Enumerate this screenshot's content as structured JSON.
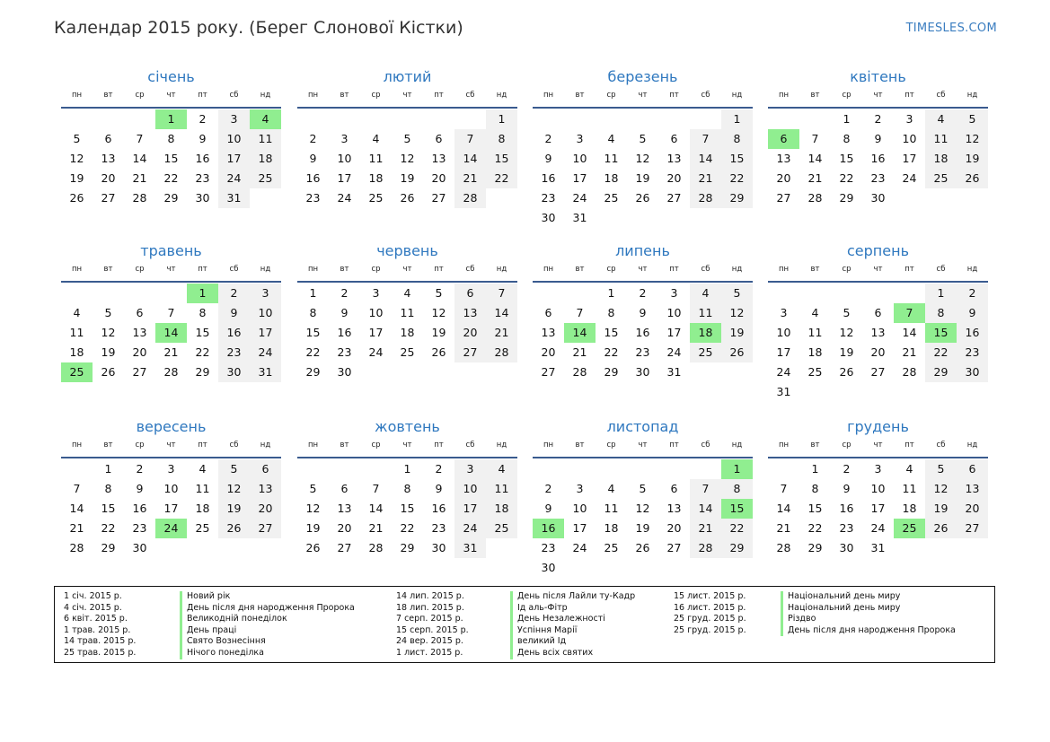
{
  "header": {
    "title": "Календар 2015 року. (Берег Слонової Кістки)",
    "brand": "TIMESLES.COM"
  },
  "weekdays": [
    "пн",
    "вт",
    "ср",
    "чт",
    "пт",
    "сб",
    "нд"
  ],
  "colors": {
    "accent": "#2f78bf",
    "holiday": "#90ee90",
    "weekend": "#f1f1f1",
    "rule": "#3a5b8f"
  },
  "months": [
    {
      "name": "січень",
      "offset": 3,
      "days": 31,
      "holidays": [
        1,
        4
      ]
    },
    {
      "name": "лютий",
      "offset": 6,
      "days": 28,
      "holidays": []
    },
    {
      "name": "березень",
      "offset": 6,
      "days": 31,
      "holidays": []
    },
    {
      "name": "квітень",
      "offset": 2,
      "days": 30,
      "holidays": [
        6
      ]
    },
    {
      "name": "травень",
      "offset": 4,
      "days": 31,
      "holidays": [
        1,
        14,
        25
      ]
    },
    {
      "name": "червень",
      "offset": 0,
      "days": 30,
      "holidays": []
    },
    {
      "name": "липень",
      "offset": 2,
      "days": 31,
      "holidays": [
        14,
        18
      ]
    },
    {
      "name": "серпень",
      "offset": 5,
      "days": 31,
      "holidays": [
        7,
        15
      ]
    },
    {
      "name": "вересень",
      "offset": 1,
      "days": 30,
      "holidays": [
        24
      ]
    },
    {
      "name": "жовтень",
      "offset": 3,
      "days": 31,
      "holidays": []
    },
    {
      "name": "листопад",
      "offset": 6,
      "days": 30,
      "holidays": [
        1,
        15,
        16
      ]
    },
    {
      "name": "грудень",
      "offset": 1,
      "days": 31,
      "holidays": [
        25
      ]
    }
  ],
  "legend": {
    "col1_dates": [
      "1 січ. 2015 р.",
      "4 січ. 2015 р.",
      "6 квіт. 2015 р.",
      "1 трав. 2015 р.",
      "14 трав. 2015 р.",
      "25 трав. 2015 р."
    ],
    "col1_names": [
      "Новий рік",
      "День після дня народження Пророка",
      "Великодній понеділок",
      "День праці",
      "Свято Вознесіння",
      "Нічого понеділка"
    ],
    "col2_dates": [
      "14 лип. 2015 р.",
      "18 лип. 2015 р.",
      "7 серп. 2015 р.",
      "15 серп. 2015 р.",
      "24 вер. 2015 р.",
      "1 лист. 2015 р."
    ],
    "col2_names": [
      "День після Лайли ту-Кадр",
      "Ід аль-Фітр",
      "День Незалежності",
      "Успіння Марії",
      "великий Ід",
      "День всіх святих"
    ],
    "col3_dates": [
      "15 лист. 2015 р.",
      "16 лист. 2015 р.",
      "25 груд. 2015 р.",
      "25 груд. 2015 р."
    ],
    "col3_names": [
      "Національний день миру",
      "Національний день миру",
      "Різдво",
      "День після дня народження Пророка"
    ]
  }
}
